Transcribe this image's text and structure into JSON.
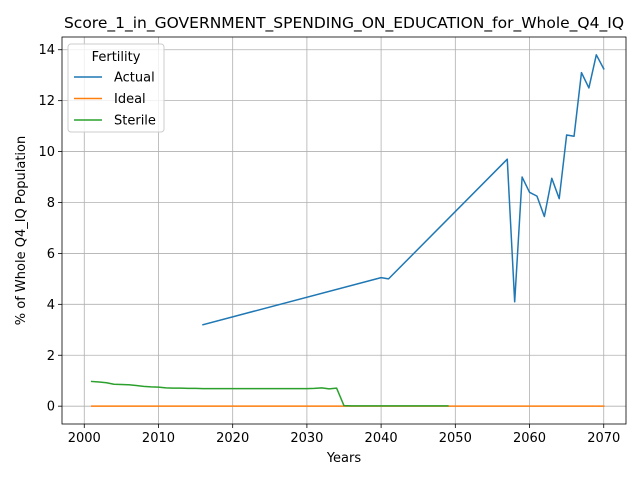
{
  "chart_data": {
    "type": "line",
    "title": "Score_1_in_GOVERNMENT_SPENDING_ON_EDUCATION_for_Whole_Q4_IQ",
    "xlabel": "Years",
    "ylabel": "% of Whole Q4_IQ Population",
    "xlim": [
      1997,
      2073
    ],
    "ylim": [
      -0.7,
      14.5
    ],
    "xticks": [
      2000,
      2010,
      2020,
      2030,
      2040,
      2050,
      2060,
      2070
    ],
    "yticks": [
      0,
      2,
      4,
      6,
      8,
      10,
      12,
      14
    ],
    "grid": true,
    "legend": {
      "title": "Fertility",
      "placement": "upper-left"
    },
    "series": [
      {
        "name": "Actual",
        "color": "#1f77b4",
        "x": [
          2016,
          2040,
          2041,
          2057,
          2058,
          2059,
          2060,
          2061,
          2062,
          2063,
          2064,
          2065,
          2066,
          2067,
          2068,
          2069,
          2070
        ],
        "y": [
          3.2,
          5.05,
          5.0,
          9.7,
          4.1,
          9.0,
          8.4,
          8.25,
          7.45,
          8.95,
          8.15,
          10.65,
          10.6,
          13.1,
          12.5,
          13.8,
          13.25
        ]
      },
      {
        "name": "Ideal",
        "color": "#ff7f0e",
        "x": [
          2001,
          2010,
          2020,
          2030,
          2040,
          2050,
          2060,
          2070
        ],
        "y": [
          0,
          0,
          0,
          0,
          0,
          0,
          0,
          0
        ]
      },
      {
        "name": "Sterile",
        "color": "#2ca02c",
        "x": [
          2001,
          2002,
          2003,
          2004,
          2005,
          2006,
          2007,
          2008,
          2009,
          2010,
          2011,
          2012,
          2013,
          2014,
          2015,
          2016,
          2017,
          2018,
          2019,
          2020,
          2021,
          2022,
          2023,
          2024,
          2025,
          2026,
          2027,
          2028,
          2029,
          2030,
          2031,
          2032,
          2033,
          2034,
          2035,
          2036,
          2037,
          2038,
          2039,
          2040,
          2041,
          2042,
          2043,
          2044,
          2045,
          2046,
          2047,
          2048,
          2049
        ],
        "y": [
          0.97,
          0.95,
          0.92,
          0.86,
          0.85,
          0.84,
          0.81,
          0.78,
          0.76,
          0.75,
          0.72,
          0.71,
          0.71,
          0.7,
          0.7,
          0.69,
          0.69,
          0.69,
          0.69,
          0.69,
          0.69,
          0.69,
          0.69,
          0.69,
          0.69,
          0.69,
          0.69,
          0.69,
          0.69,
          0.69,
          0.7,
          0.72,
          0.68,
          0.71,
          0.02,
          0.01,
          0.01,
          0.01,
          0.01,
          0.01,
          0.01,
          0.01,
          0.01,
          0.01,
          0.01,
          0.01,
          0.01,
          0.01,
          0.01
        ]
      }
    ]
  }
}
